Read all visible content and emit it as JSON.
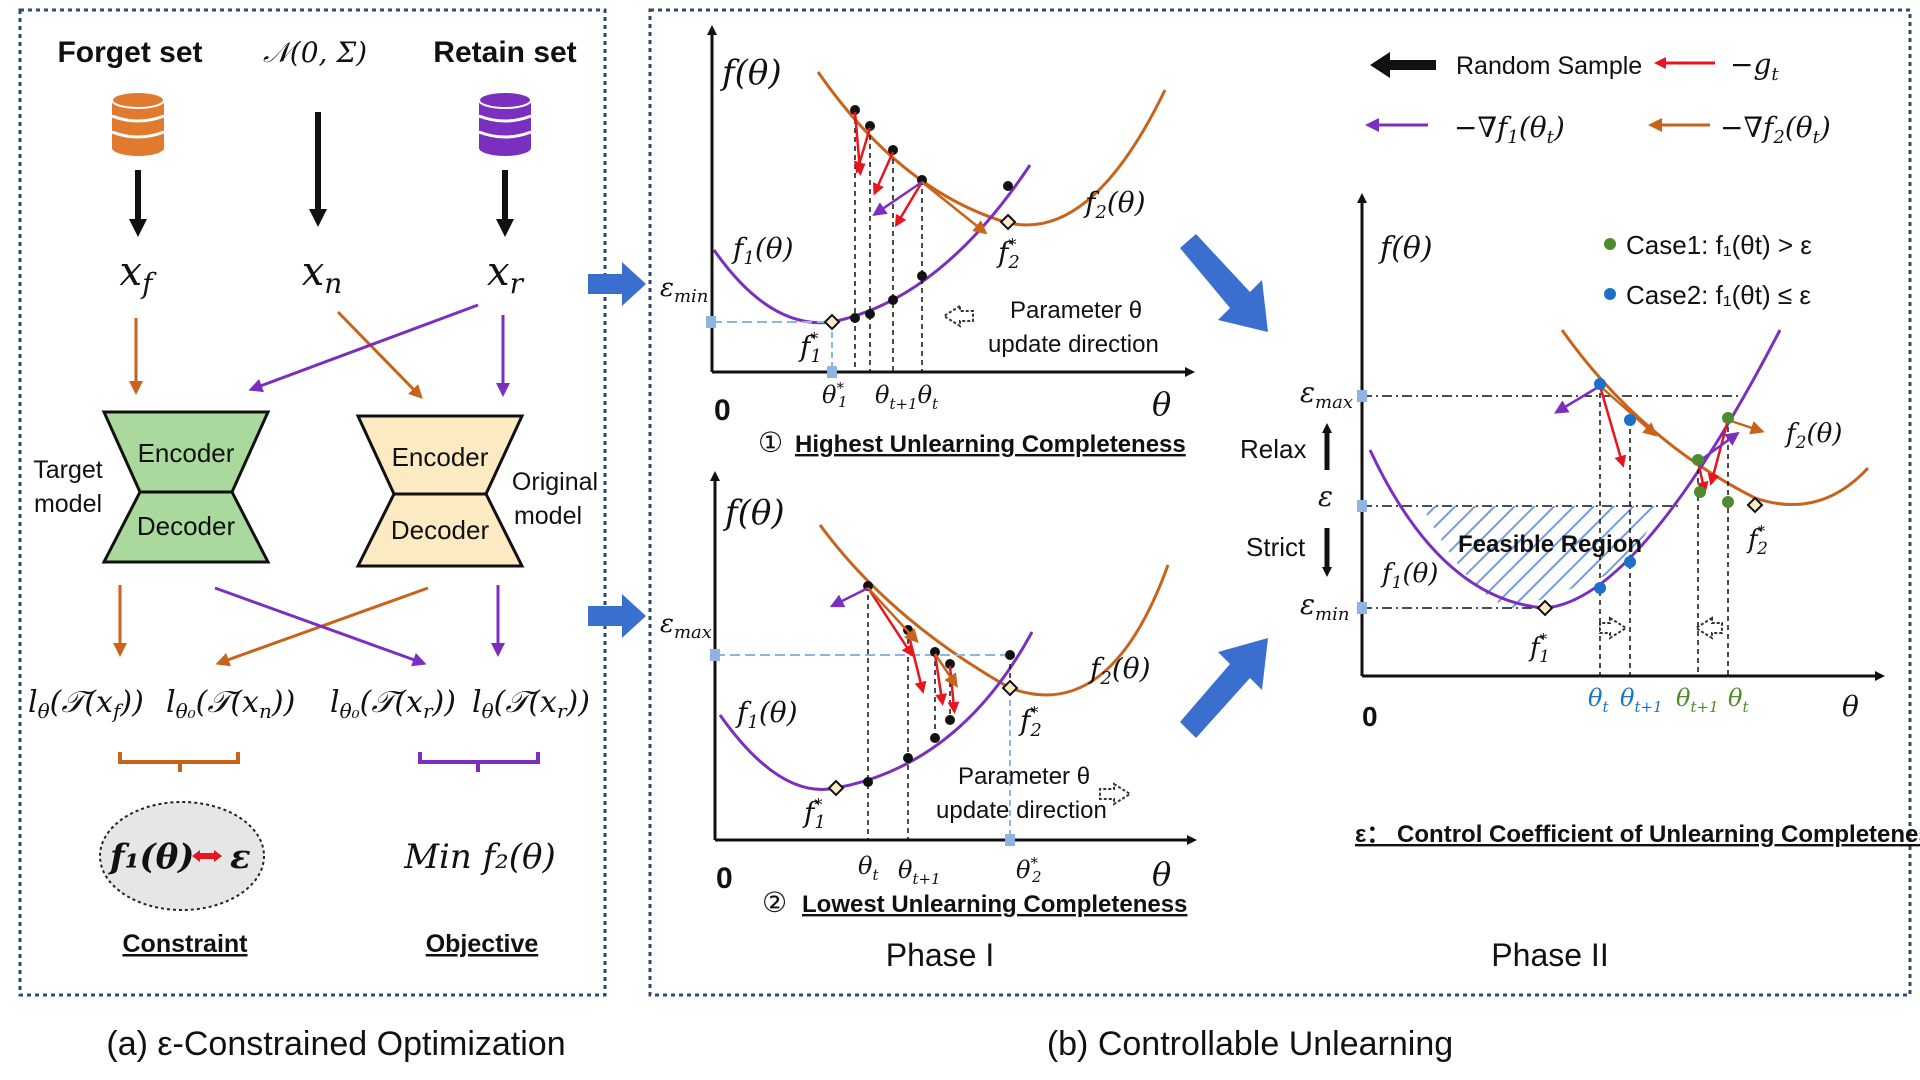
{
  "panel_a": {
    "forget_label": "Forget set",
    "noise_label": "𝒩(0, Σ)",
    "retain_label": "Retain set",
    "x_f": "xf",
    "x_n": "xn",
    "x_r": "xr",
    "target_model_line1": "Target",
    "target_model_line2": "model",
    "original_model_line1": "Original",
    "original_model_line2": "model",
    "encoder": "Encoder",
    "decoder": "Decoder",
    "loss_1": "lθ(𝒯(xf))",
    "loss_2": "lθ₀(𝒯(xn))",
    "loss_3": "lθ₀(𝒯(xr))",
    "loss_4": "lθ(𝒯(xr))",
    "constraint_expr_left": "f₁(θ)",
    "constraint_expr_right": "ε",
    "objective_expr": "Min f₂(θ)",
    "constraint_label": "Constraint",
    "objective_label": "Objective",
    "caption": "(a) ε-Constrained Optimization"
  },
  "panel_b": {
    "caption": "(b) Controllable Unlearning",
    "phase1": "Phase I",
    "phase2": "Phase II",
    "top": {
      "y_label": "f(θ)",
      "x_label": "θ",
      "zero": "0",
      "eps": "εmin",
      "f1": "f₁(θ)",
      "f2": "f₂(θ)",
      "f1_star": "f₁*",
      "f2_star": "f₂*",
      "theta_star": "θ₁*",
      "theta_ticks": "θt+1θt",
      "update_line1": "Parameter θ",
      "update_line2": "update direction",
      "title_num": "①",
      "title": "Highest Unlearning Completeness"
    },
    "bottom": {
      "y_label": "f(θ)",
      "x_label": "θ",
      "zero": "0",
      "eps": "εmax",
      "f1": "f₁(θ)",
      "f2": "f₂(θ)",
      "f1_star": "f₁*",
      "f2_star": "f₂*",
      "theta_t": "θt",
      "theta_t1": "θt+1",
      "theta_2star": "θ₂*",
      "update_line1": "Parameter θ",
      "update_line2": "update direction",
      "title_num": "②",
      "title": "Lowest Unlearning Completeness"
    },
    "legend": {
      "random_sample": "Random Sample",
      "neg_g": "−gt",
      "grad_f1": "−∇f₁(θt)",
      "grad_f2": "−∇f₂(θt)"
    },
    "right": {
      "y_label": "f(θ)",
      "x_label": "θ",
      "zero": "0",
      "eps_max": "εmax",
      "eps_min": "εmin",
      "eps": "ε",
      "relax": "Relax",
      "strict": "Strict",
      "case1": "Case1: f₁(θt) > ε",
      "case2": "Case2: f₁(θt) ≤ ε",
      "feasible": "Feasible Region",
      "f1": "f₁(θ)",
      "f2": "f₂(θ)",
      "f1_star": "f₁*",
      "f2_star": "f₂*",
      "theta_t_blue": "θt",
      "theta_t1_blue": "θt+1",
      "theta_t1_green": "θt+1",
      "theta_t_green": "θt",
      "footnote": "ε： Control Coefficient of Unlearning Completeness"
    },
    "colors": {
      "orange": "#C8631C",
      "purple": "#7B2FBE",
      "red": "#E8141E",
      "blue_arrow": "#3A6FD0",
      "case1": "#4E8A2E",
      "case2": "#1A72C8"
    }
  }
}
